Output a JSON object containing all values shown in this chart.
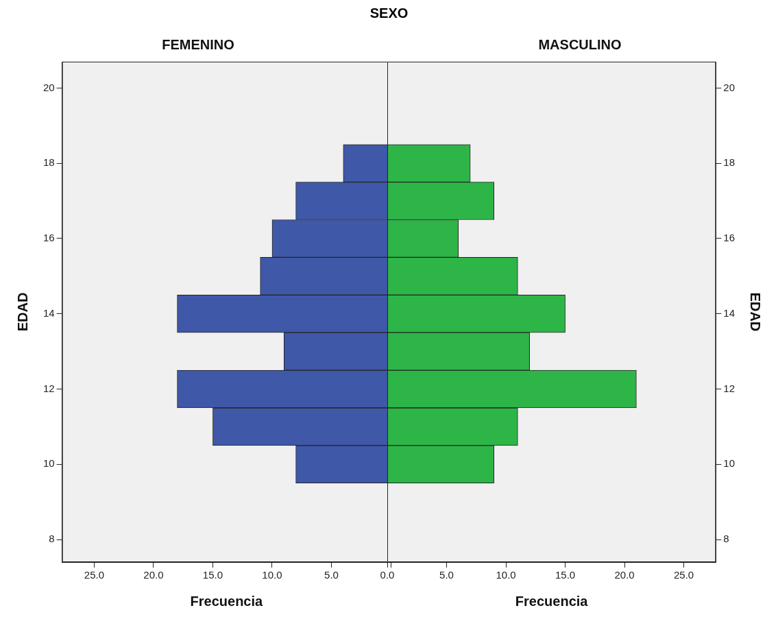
{
  "chart_data": [
    {
      "type": "histogram",
      "orientation": "horizontal",
      "title": "FEMENINO",
      "annotations": [
        "SEXO"
      ],
      "xlabel": "Frecuencia",
      "ylabel": "EDAD",
      "bins": [
        9.5,
        10.5,
        11.5,
        12.5,
        13.5,
        14.5,
        15.5,
        16.5,
        17.5,
        18.5
      ],
      "values": [
        8,
        15,
        18,
        9,
        18,
        11,
        10,
        8,
        4
      ],
      "color": "#3f58a8",
      "xlim": [
        27.7,
        0
      ],
      "xticks": [
        {
          "value": 25,
          "label": "25.0"
        },
        {
          "value": 20,
          "label": "20.0"
        },
        {
          "value": 15,
          "label": "15.0"
        },
        {
          "value": 10,
          "label": "10.0"
        },
        {
          "value": 5,
          "label": "5.0"
        },
        {
          "value": 0,
          "label": null
        }
      ],
      "ylim": [
        7.4,
        20.7
      ],
      "yticks": [
        8,
        10,
        12,
        14,
        16,
        18,
        20
      ],
      "grid": false,
      "legend": false
    },
    {
      "type": "histogram",
      "orientation": "horizontal",
      "title": "MASCULINO",
      "xlabel": "Frecuencia",
      "ylabel": "EDAD",
      "bins": [
        9.5,
        10.5,
        11.5,
        12.5,
        13.5,
        14.5,
        15.5,
        16.5,
        17.5,
        18.5
      ],
      "values": [
        9,
        11,
        21,
        12,
        15,
        11,
        6,
        9,
        7
      ],
      "color": "#2eb548",
      "xlim": [
        0,
        27.7
      ],
      "xticks": [
        {
          "value": 0,
          "label": "0.0"
        },
        {
          "value": 5,
          "label": "5.0"
        },
        {
          "value": 10,
          "label": "10.0"
        },
        {
          "value": 15,
          "label": "15.0"
        },
        {
          "value": 20,
          "label": "20.0"
        },
        {
          "value": 25,
          "label": "25.0"
        }
      ],
      "ylim": [
        7.4,
        20.7
      ],
      "yticks": [
        8,
        10,
        12,
        14,
        16,
        18,
        20
      ],
      "grid": false,
      "legend": false
    }
  ]
}
